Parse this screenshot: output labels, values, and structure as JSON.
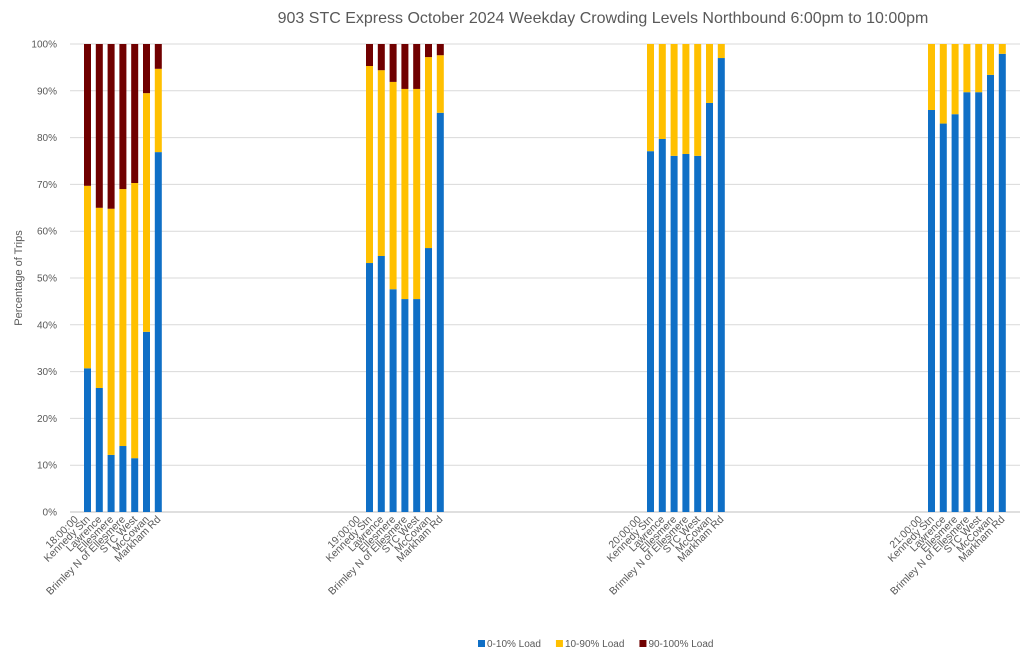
{
  "chart_data": {
    "type": "bar",
    "stacked": true,
    "percent_stacked": true,
    "title": "903 STC Express October 2024  Weekday Crowding Levels Northbound 6:00pm to 10:00pm",
    "xlabel": "",
    "ylabel": "Percentage of Trips",
    "ylim": [
      0,
      100
    ],
    "yticks": [
      "0%",
      "10%",
      "20%",
      "30%",
      "40%",
      "50%",
      "60%",
      "70%",
      "80%",
      "90%",
      "100%"
    ],
    "grid": true,
    "legend_position": "bottom",
    "stations": [
      "Kennedy Stn",
      "Lawrence",
      "Ellesmere",
      "Brimley N of Ellesmere",
      "STC West",
      "McCowan",
      "Markham Rd"
    ],
    "groups": [
      {
        "time": "18:00:00",
        "series": [
          {
            "name": "0-10% Load",
            "values": [
              30.7,
              26.5,
              12.2,
              14.1,
              11.5,
              38.5,
              76.9
            ]
          },
          {
            "name": "10-90% Load",
            "values": [
              39.0,
              38.5,
              52.6,
              54.9,
              58.8,
              51.0,
              17.8
            ]
          },
          {
            "name": "90-100% Load",
            "values": [
              30.3,
              35.0,
              35.2,
              31.0,
              29.7,
              10.5,
              5.3
            ]
          }
        ]
      },
      {
        "time": "19:00:00",
        "series": [
          {
            "name": "0-10% Load",
            "values": [
              53.2,
              54.7,
              47.6,
              45.5,
              45.5,
              56.4,
              85.3
            ]
          },
          {
            "name": "10-90% Load",
            "values": [
              42.1,
              39.7,
              44.3,
              44.9,
              44.9,
              40.8,
              12.3
            ]
          },
          {
            "name": "90-100% Load",
            "values": [
              4.7,
              5.6,
              8.1,
              9.6,
              9.6,
              2.8,
              2.4
            ]
          }
        ]
      },
      {
        "time": "20:00:00",
        "series": [
          {
            "name": "0-10% Load",
            "values": [
              77.1,
              79.7,
              76.1,
              76.5,
              76.1,
              87.4,
              97.0
            ]
          },
          {
            "name": "10-90% Load",
            "values": [
              22.9,
              20.3,
              23.9,
              23.5,
              23.9,
              12.6,
              3.0
            ]
          },
          {
            "name": "90-100% Load",
            "values": [
              0,
              0,
              0,
              0,
              0,
              0,
              0
            ]
          }
        ]
      },
      {
        "time": "21:00:00",
        "series": [
          {
            "name": "0-10% Load",
            "values": [
              85.9,
              83.0,
              85.0,
              89.7,
              89.7,
              93.4,
              97.9
            ]
          },
          {
            "name": "10-90% Load",
            "values": [
              14.1,
              17.0,
              15.0,
              10.3,
              10.3,
              6.6,
              2.1
            ]
          },
          {
            "name": "90-100% Load",
            "values": [
              0,
              0,
              0,
              0,
              0,
              0,
              0
            ]
          }
        ]
      }
    ],
    "legend": [
      {
        "name": "0-10% Load",
        "color": "#0F6FC6"
      },
      {
        "name": "10-90% Load",
        "color": "#FFC000"
      },
      {
        "name": "90-100% Load",
        "color": "#700000"
      }
    ]
  }
}
